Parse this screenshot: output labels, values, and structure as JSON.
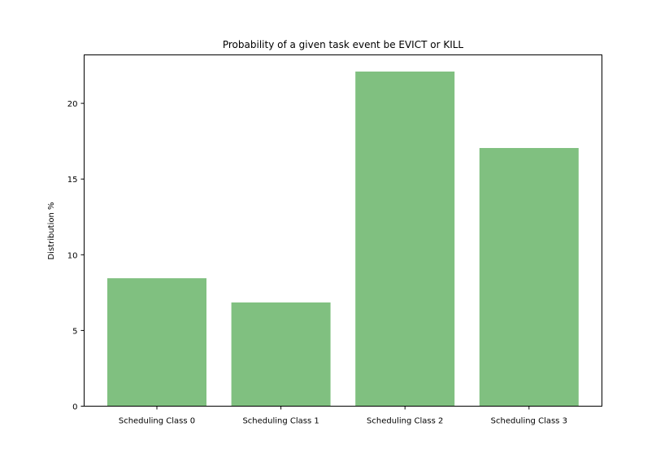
{
  "chart_data": {
    "type": "bar",
    "title": "Probability of a given task event be EVICT or KILL",
    "xlabel": "",
    "ylabel": "Distribution %",
    "categories": [
      "Scheduling Class 0",
      "Scheduling Class 1",
      "Scheduling Class 2",
      "Scheduling Class 3"
    ],
    "values": [
      8.45,
      6.85,
      22.1,
      17.05
    ],
    "yticks": [
      0,
      5,
      10,
      15,
      20
    ],
    "ylim": [
      0,
      23.2
    ],
    "grid": false,
    "bar_color": "#80c080"
  }
}
